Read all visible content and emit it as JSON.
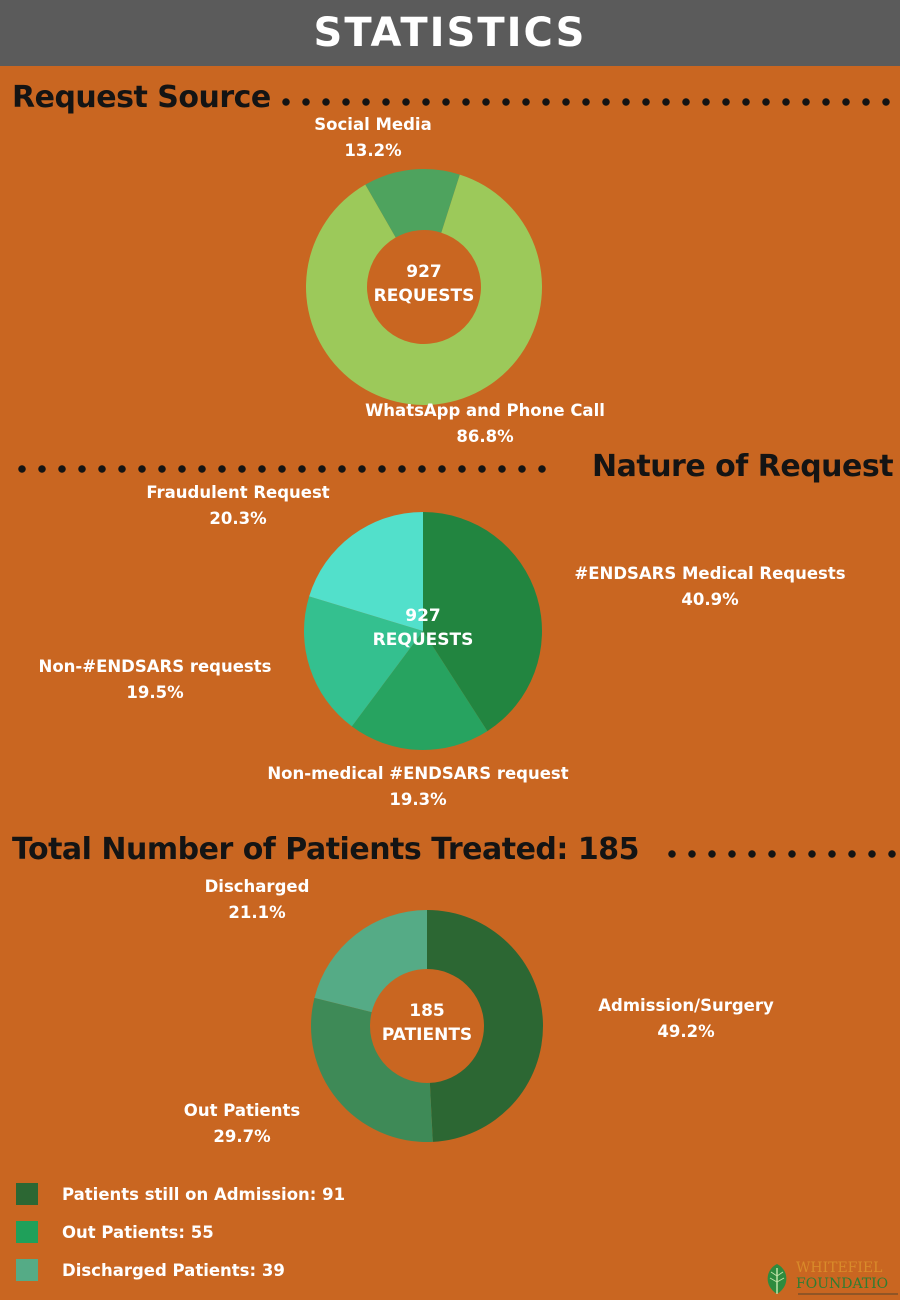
{
  "banner": {
    "title": "STATISTICS"
  },
  "headings": {
    "request_source": "Request Source",
    "nature_of_request": "Nature of Request",
    "patients_treated": "Total Number of Patients Treated: 185"
  },
  "colors": {
    "background": "#c96621",
    "banner": "#5b5b5b",
    "social_media": "#4ea35e",
    "whatsapp": "#9cc95a",
    "endsars_medical": "#228540",
    "non_medical": "#27a360",
    "non_endsars": "#34c08f",
    "fraudulent": "#52e0cb",
    "admission": "#2c6733",
    "out_patients": "#3e8a57",
    "discharged": "#55ab86"
  },
  "chart_data": [
    {
      "type": "pie",
      "variant": "donut",
      "center_text": [
        "927",
        "REQUESTS"
      ],
      "categories": [
        "Social Media",
        "WhatsApp and Phone Call"
      ],
      "values": [
        13.2,
        86.8
      ],
      "value_labels": [
        "13.2%",
        "86.8%"
      ]
    },
    {
      "type": "pie",
      "variant": "pie",
      "center_text": [
        "927",
        "REQUESTS"
      ],
      "categories": [
        "#ENDSARS Medical Requests",
        "Non-medical #ENDSARS request",
        "Non-#ENDSARS requests",
        "Fraudulent Request"
      ],
      "values": [
        40.9,
        19.3,
        19.5,
        20.3
      ],
      "value_labels": [
        "40.9%",
        "19.3%",
        "19.5%",
        "20.3%"
      ]
    },
    {
      "type": "pie",
      "variant": "donut",
      "center_text": [
        "185",
        "PATIENTS"
      ],
      "categories": [
        "Admission/Surgery",
        "Out Patients",
        "Discharged"
      ],
      "values": [
        49.2,
        29.7,
        21.1
      ],
      "value_labels": [
        "49.2%",
        "29.7%",
        "21.1%"
      ]
    }
  ],
  "legend": [
    {
      "label": "Patients still on Admission: 91",
      "color": "#2c6733"
    },
    {
      "label": "Out Patients: 55",
      "color": "#1fa05a"
    },
    {
      "label": "Discharged Patients: 39",
      "color": "#55ab86"
    }
  ],
  "logo": {
    "name": "leaf-logo",
    "line1": "WHITEFIEL",
    "line2": "FOUNDATIO"
  }
}
